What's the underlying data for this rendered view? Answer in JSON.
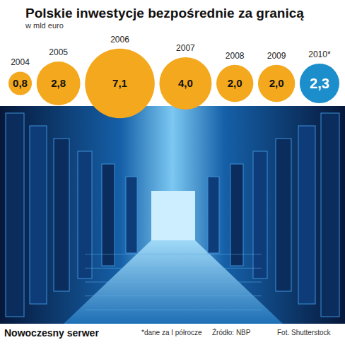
{
  "chart_data": {
    "type": "bubble",
    "title": "Polskie inwestycje bezpośrednie za granicą",
    "subtitle": "w mld euro",
    "categories": [
      "2004",
      "2005",
      "2006",
      "2007",
      "2008",
      "2009",
      "2010*"
    ],
    "values": [
      0.8,
      2.8,
      7.1,
      4.0,
      2.0,
      2.0,
      2.3
    ],
    "value_labels": [
      "0,8",
      "2,8",
      "7,1",
      "4,0",
      "2,0",
      "2,0",
      "2,3"
    ],
    "colors": [
      "#f4a81d",
      "#f4a81d",
      "#f4a81d",
      "#f4a81d",
      "#f4a81d",
      "#f4a81d",
      "#1b8ecb"
    ],
    "data_labels": true,
    "annotations": [
      "Nowoczesny serwer",
      "*dane za I półrocze",
      "Źródło: NBP",
      "Fot. Shutterstock"
    ]
  }
}
